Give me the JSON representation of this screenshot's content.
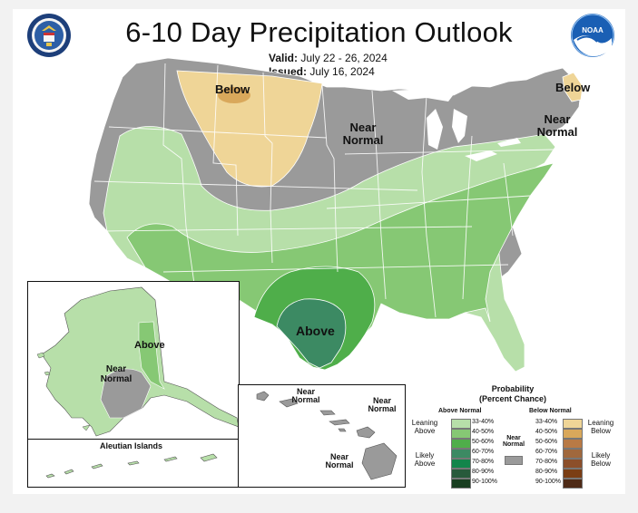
{
  "title": "6-10 Day Precipitation Outlook",
  "valid_label": "Valid:",
  "valid_value": "July 22 - 26, 2024",
  "issued_label": "Issued:",
  "issued_value": "July 16, 2024",
  "noaa_logo_text": "NOAA",
  "map_labels": {
    "below_northern_plains": "Below",
    "below_northeast": "Below",
    "near_normal_north": "Near Normal",
    "near_normal_northeast": "Near Normal",
    "above_texas": "Above",
    "alaska_above": "Above",
    "alaska_near_normal": "Near Normal",
    "aleutian": "Aleutian Islands",
    "hawaii_near_normal_1": "Near Normal",
    "hawaii_near_normal_2": "Near Normal",
    "hawaii_near_normal_3": "Near Normal"
  },
  "legend": {
    "title_line1": "Probability",
    "title_line2": "(Percent Chance)",
    "above_header": "Above Normal",
    "below_header": "Below Normal",
    "near_label": "Near Normal",
    "leaning_above": "Leaning Above",
    "likely_above": "Likely Above",
    "leaning_below": "Leaning Below",
    "likely_below": "Likely Below",
    "above_bins": [
      {
        "label": "33-40%",
        "color": "#b7dfa9"
      },
      {
        "label": "40-50%",
        "color": "#86c874"
      },
      {
        "label": "50-60%",
        "color": "#4fae4a"
      },
      {
        "label": "60-70%",
        "color": "#3c8a63"
      },
      {
        "label": "70-80%",
        "color": "#13854b"
      },
      {
        "label": "80-90%",
        "color": "#285a3b"
      },
      {
        "label": "90-100%",
        "color": "#183e20"
      }
    ],
    "below_bins": [
      {
        "label": "33-40%",
        "color": "#efd597"
      },
      {
        "label": "40-50%",
        "color": "#d9a85b"
      },
      {
        "label": "50-60%",
        "color": "#b97a45"
      },
      {
        "label": "60-70%",
        "color": "#a0683d"
      },
      {
        "label": "70-80%",
        "color": "#8c4f2a"
      },
      {
        "label": "80-90%",
        "color": "#7b3e14"
      },
      {
        "label": "90-100%",
        "color": "#4e2a16"
      }
    ],
    "near_color": "#9a9a9a"
  },
  "colors": {
    "near_normal": "#9a9a9a",
    "above_33_40": "#b7dfa9",
    "above_40_50": "#86c874",
    "above_50_60": "#4fae4a",
    "above_60_70": "#3c8a63",
    "below_33_40": "#efd597",
    "below_40_50": "#d9a85b"
  }
}
